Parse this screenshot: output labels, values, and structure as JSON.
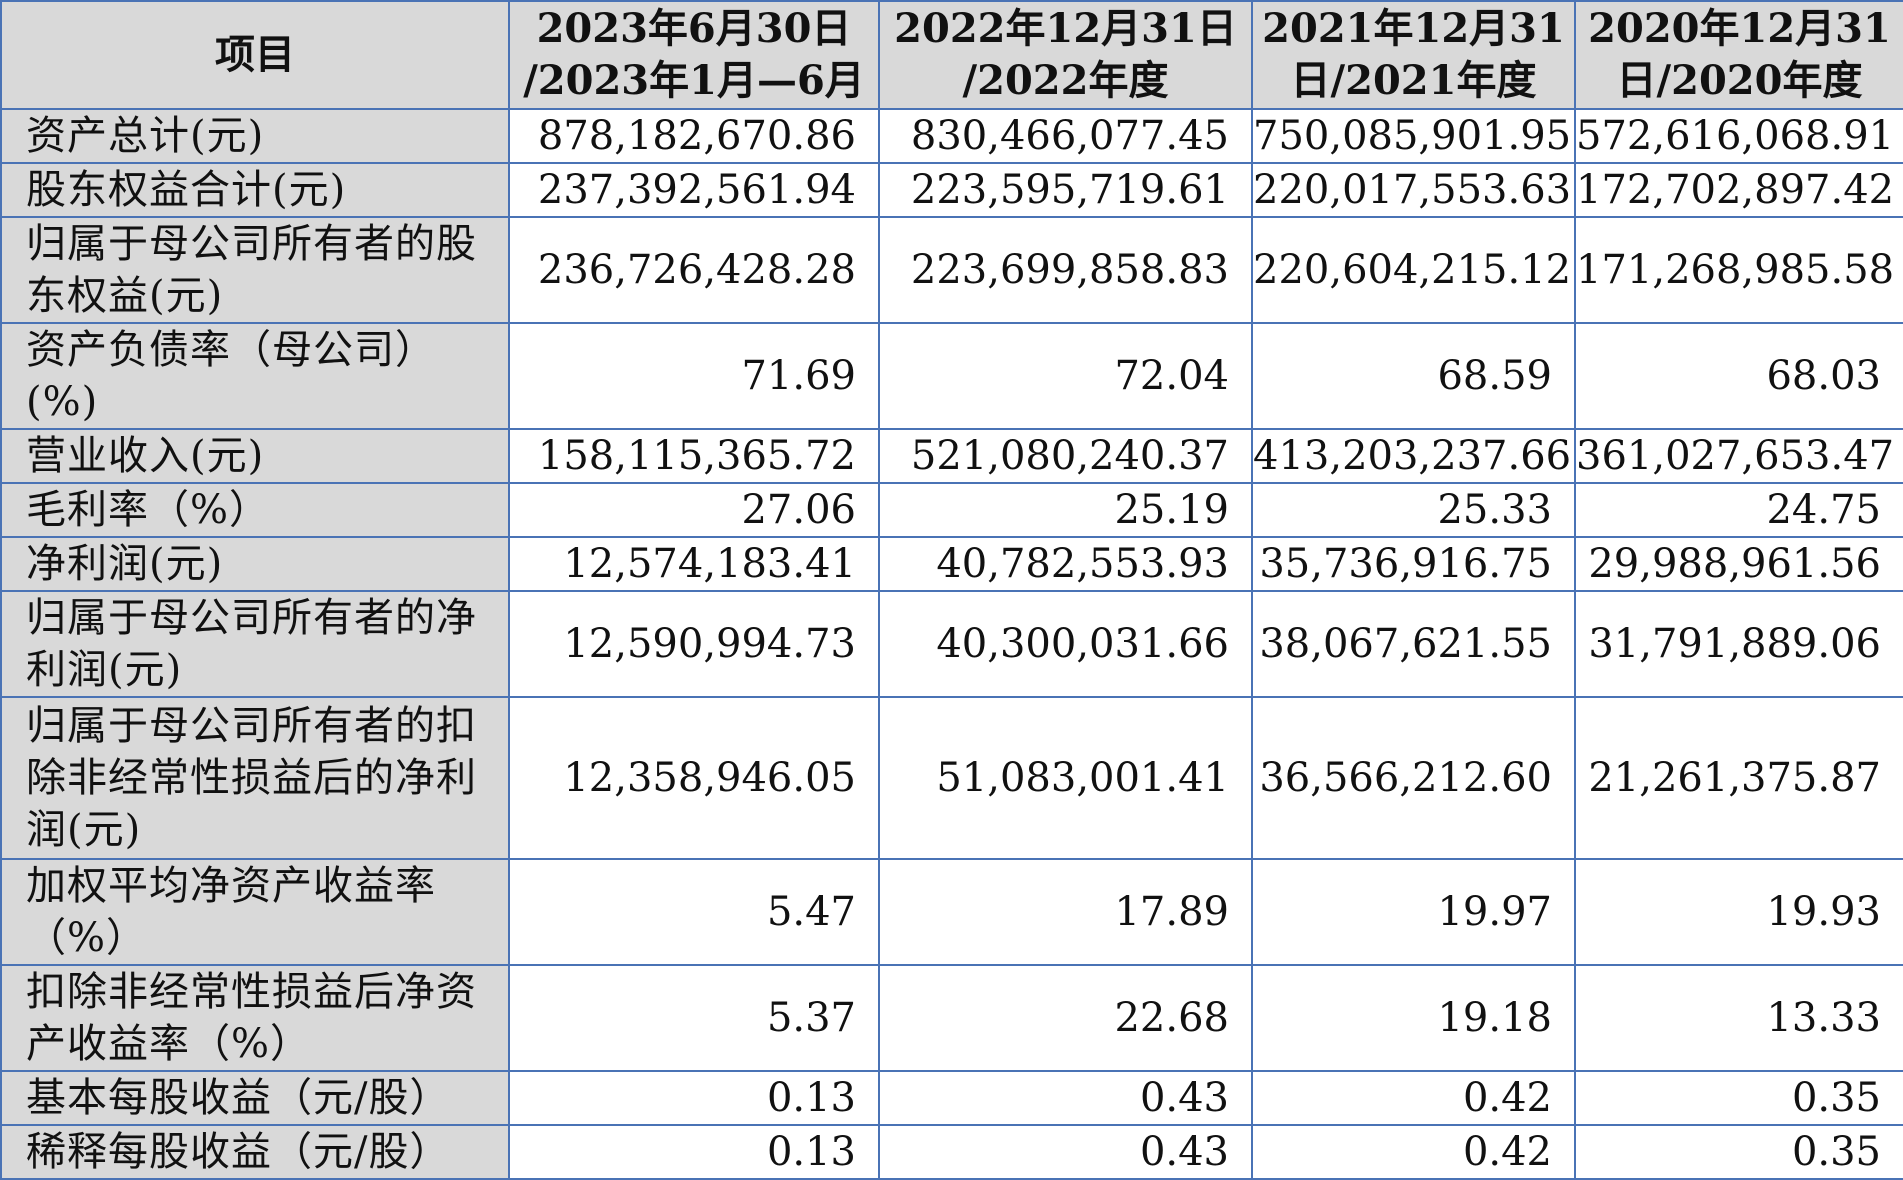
{
  "table": {
    "header": {
      "item": "项目",
      "cols": [
        {
          "line1": "2023年6月30日",
          "line2": "/2023年1月—6月"
        },
        {
          "line1": "2022年12月31日",
          "line2": "/2022年度"
        },
        {
          "line1": "2021年12月31",
          "line2": "日/2021年度"
        },
        {
          "line1": "2020年12月31",
          "line2": "日/2020年度"
        }
      ]
    },
    "rows": [
      {
        "label": "资产总计(元)",
        "values": [
          "878,182,670.86",
          "830,466,077.45",
          "750,085,901.95",
          "572,616,068.91"
        ]
      },
      {
        "label": "股东权益合计(元)",
        "values": [
          "237,392,561.94",
          "223,595,719.61",
          "220,017,553.63",
          "172,702,897.42"
        ]
      },
      {
        "label": "归属于母公司所有者的股东权益(元)",
        "values": [
          "236,726,428.28",
          "223,699,858.83",
          "220,604,215.12",
          "171,268,985.58"
        ]
      },
      {
        "label": "资产负债率（母公司）(%)",
        "values": [
          "71.69",
          "72.04",
          "68.59",
          "68.03"
        ]
      },
      {
        "label": "营业收入(元)",
        "values": [
          "158,115,365.72",
          "521,080,240.37",
          "413,203,237.66",
          "361,027,653.47"
        ]
      },
      {
        "label": "毛利率（%）",
        "values": [
          "27.06",
          "25.19",
          "25.33",
          "24.75"
        ]
      },
      {
        "label": "净利润(元)",
        "values": [
          "12,574,183.41",
          "40,782,553.93",
          "35,736,916.75",
          "29,988,961.56"
        ]
      },
      {
        "label": "归属于母公司所有者的净利润(元)",
        "values": [
          "12,590,994.73",
          "40,300,031.66",
          "38,067,621.55",
          "31,791,889.06"
        ]
      },
      {
        "label": "归属于母公司所有者的扣除非经常性损益后的净利润(元)",
        "values": [
          "12,358,946.05",
          "51,083,001.41",
          "36,566,212.60",
          "21,261,375.87"
        ]
      },
      {
        "label": "加权平均净资产收益率（%）",
        "values": [
          "5.47",
          "17.89",
          "19.97",
          "19.93"
        ]
      },
      {
        "label": "扣除非经常性损益后净资产收益率（%）",
        "values": [
          "5.37",
          "22.68",
          "19.18",
          "13.33"
        ]
      },
      {
        "label": "基本每股收益（元/股）",
        "values": [
          "0.13",
          "0.43",
          "0.42",
          "0.35"
        ]
      },
      {
        "label": "稀释每股收益（元/股）",
        "values": [
          "0.13",
          "0.43",
          "0.42",
          "0.35"
        ]
      }
    ]
  }
}
